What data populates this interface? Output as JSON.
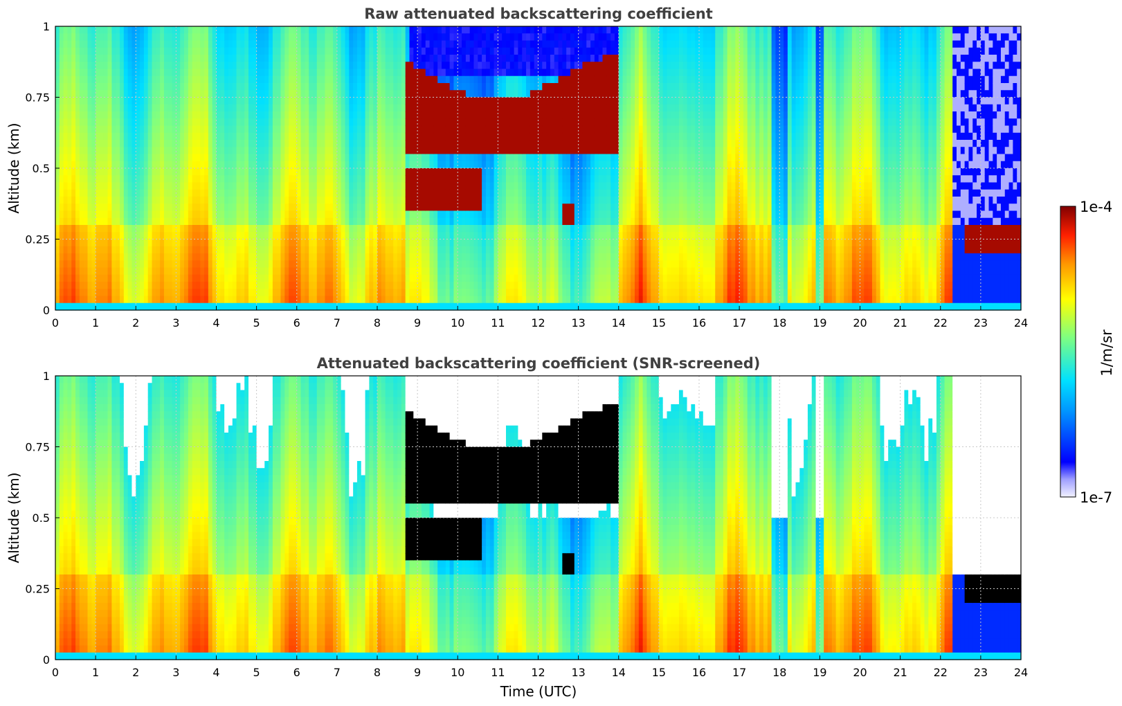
{
  "chart_data": [
    {
      "type": "heatmap",
      "title": "Raw attenuated backscattering coefficient",
      "xlabel": "",
      "ylabel": "Altitude (km)",
      "xlim": [
        0,
        24
      ],
      "ylim": [
        0,
        1
      ],
      "x_ticks": [
        "0",
        "1",
        "2",
        "3",
        "4",
        "5",
        "6",
        "7",
        "8",
        "9",
        "10",
        "11",
        "12",
        "13",
        "14",
        "15",
        "16",
        "17",
        "18",
        "19",
        "20",
        "21",
        "22",
        "23",
        "24"
      ],
      "y_ticks": [
        "0",
        "0.25",
        "0.5",
        "0.75",
        "1"
      ],
      "grid": true,
      "features": [
        {
          "name": "cloud",
          "t_start": 8.6,
          "t_end": 14.1,
          "alt": [
            0.3,
            0.92
          ]
        },
        {
          "name": "low cloud",
          "t_start": 22.6,
          "t_end": 24.0,
          "alt": [
            0.18,
            0.32
          ]
        },
        {
          "name": "near-surface layer",
          "t_start": 0,
          "t_end": 24,
          "alt": [
            0,
            0.025
          ]
        }
      ]
    },
    {
      "type": "heatmap",
      "title": "Attenuated backscattering coefficient (SNR-screened)",
      "xlabel": "Time (UTC)",
      "ylabel": "Altitude (km)",
      "xlim": [
        0,
        24
      ],
      "ylim": [
        0,
        1
      ],
      "x_ticks": [
        "0",
        "1",
        "2",
        "3",
        "4",
        "5",
        "6",
        "7",
        "8",
        "9",
        "10",
        "11",
        "12",
        "13",
        "14",
        "15",
        "16",
        "17",
        "18",
        "19",
        "20",
        "21",
        "22",
        "23",
        "24"
      ],
      "y_ticks": [
        "0",
        "0.25",
        "0.5",
        "0.75",
        "1"
      ],
      "grid": true,
      "features": [
        {
          "name": "cloud (saturated, black)",
          "t_start": 8.6,
          "t_end": 14.1,
          "alt": [
            0.3,
            0.92
          ]
        },
        {
          "name": "screened-out region (white)",
          "t_start": 22.0,
          "t_end": 24.0,
          "alt": [
            0.3,
            1.0
          ]
        },
        {
          "name": "low cloud",
          "t_start": 22.6,
          "t_end": 24.0,
          "alt": [
            0.18,
            0.3
          ]
        }
      ]
    }
  ],
  "colorbar": {
    "min_label": "1e-7",
    "max_label": "1e-4",
    "units_label": "1/m/sr",
    "scale": "log",
    "colormap": "jet"
  }
}
